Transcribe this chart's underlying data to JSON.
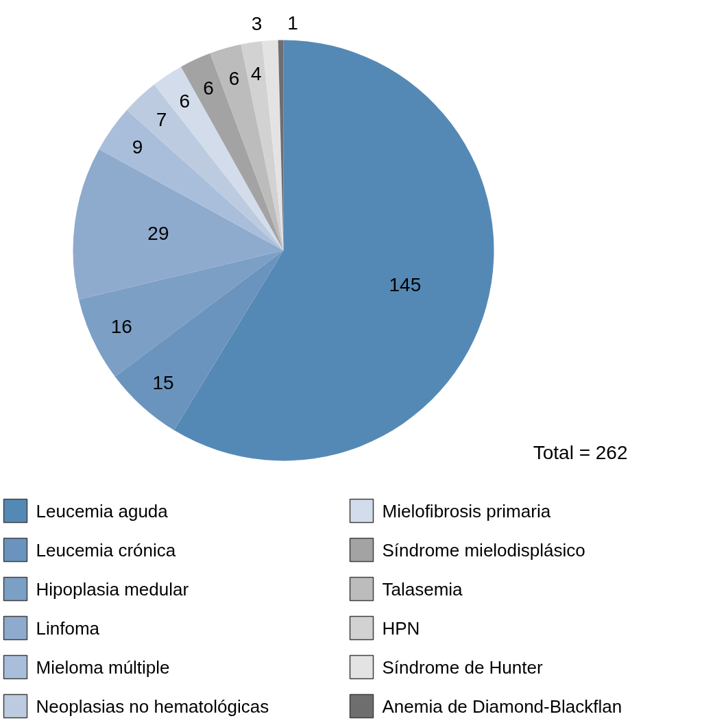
{
  "chart_data": {
    "type": "pie",
    "categories": [
      "Leucemia aguda",
      "Leucemia crónica",
      "Hipoplasia medular",
      "Linfoma",
      "Mieloma múltiple",
      "Neoplasias no hematológicas",
      "Mielofibrosis primaria",
      "Síndrome mielodisplásico",
      "Talasemia",
      "HPN",
      "Síndrome de Hunter",
      "Anemia de Diamond-Blackflan"
    ],
    "values": [
      145,
      15,
      16,
      29,
      9,
      7,
      6,
      6,
      6,
      4,
      3,
      1
    ],
    "colors": [
      "#5589b5",
      "#6a94bd",
      "#7b9fc5",
      "#8eaacd",
      "#a9bedb",
      "#bccbdf",
      "#d3dcea",
      "#a3a3a3",
      "#bcbcbc",
      "#d2d2d2",
      "#e3e3e3",
      "#6e6e6e"
    ],
    "data_labels": true,
    "legend": "bottom",
    "annotations": [
      "Total = 262"
    ]
  }
}
